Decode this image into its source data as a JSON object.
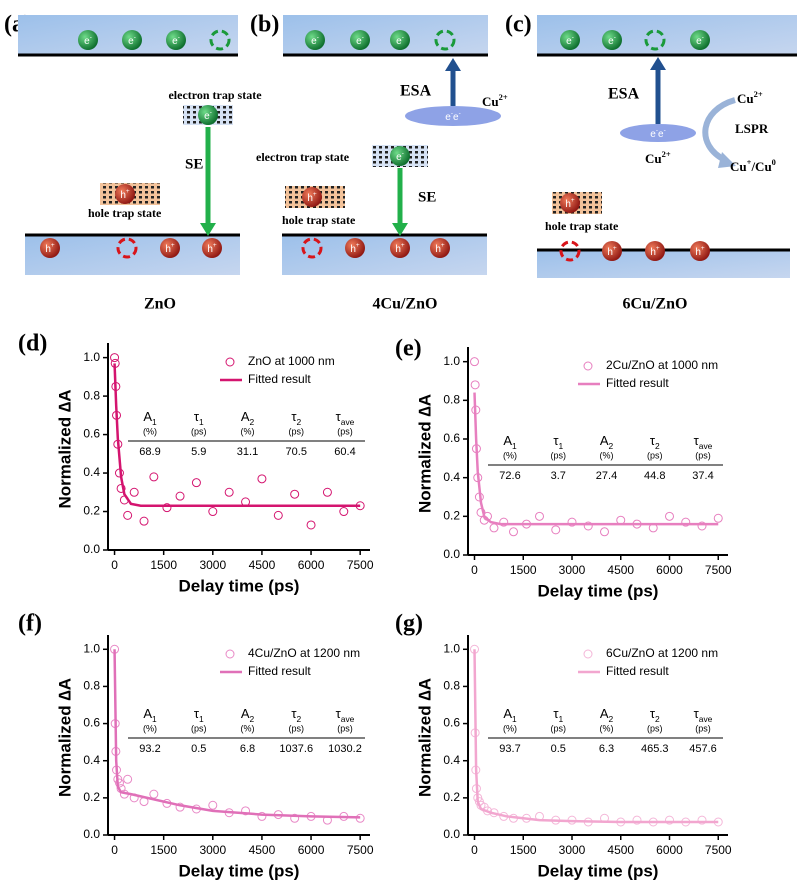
{
  "diagram": {
    "carriers": {
      "electron": "e",
      "electron_charge": "-",
      "hole": "h",
      "hole_charge": "+"
    },
    "panels": [
      {
        "label": "(a)",
        "caption": "ZnO",
        "electron_trap": "electron trap state",
        "hole_trap": "hole trap state",
        "transition": "SE"
      },
      {
        "label": "(b)",
        "caption": "4Cu/ZnO",
        "electron_trap": "electron trap state",
        "hole_trap": "hole trap state",
        "transition": "SE",
        "excitation": "ESA",
        "ion": "Cu",
        "ion_charge": "2+"
      },
      {
        "label": "(c)",
        "caption": "6Cu/ZnO",
        "hole_trap": "hole trap state",
        "excitation": "ESA",
        "ion": "Cu",
        "ion_charge": "2+",
        "process": "LSPR",
        "products": [
          "Cu",
          "+",
          "/Cu",
          "0"
        ]
      }
    ]
  },
  "chart_data": [
    {
      "type": "scatter",
      "label": "(d)",
      "x_label": "Delay time (ps)",
      "y_label": "Normalized ∆A",
      "xlim": [
        -200,
        7800
      ],
      "ylim": [
        0,
        1.05
      ],
      "xticks": [
        0,
        1500,
        3000,
        4500,
        6000,
        7500
      ],
      "yticks": [
        {
          "value": 0,
          "label": "0.0"
        },
        0.2,
        0.4,
        0.6,
        0.8,
        {
          "value": 1,
          "label": "1.0"
        }
      ],
      "series": [
        {
          "name": "ZnO at 1000 nm",
          "color": "#d4146f",
          "mode": "markers",
          "x": [
            0,
            20,
            40,
            60,
            100,
            150,
            200,
            300,
            400,
            600,
            900,
            1200,
            1600,
            2000,
            2500,
            3000,
            3500,
            4000,
            4500,
            5000,
            5500,
            6000,
            6500,
            7000,
            7500
          ],
          "values": [
            1.0,
            0.97,
            0.85,
            0.7,
            0.55,
            0.4,
            0.32,
            0.26,
            0.18,
            0.3,
            0.15,
            0.38,
            0.22,
            0.28,
            0.35,
            0.2,
            0.3,
            0.25,
            0.37,
            0.18,
            0.29,
            0.13,
            0.3,
            0.2,
            0.23
          ]
        },
        {
          "name": "Fitted result",
          "color": "#d4146f",
          "mode": "line",
          "x": [
            0,
            50,
            100,
            200,
            300,
            500,
            800,
            1500,
            3000,
            7500
          ],
          "values": [
            0.97,
            0.75,
            0.58,
            0.38,
            0.29,
            0.24,
            0.23,
            0.23,
            0.23,
            0.23
          ]
        }
      ],
      "table": {
        "columns": [
          {
            "symbol": "A",
            "sub": "1",
            "unit": "(%)"
          },
          {
            "symbol": "τ",
            "sub": "1",
            "unit": "(ps)"
          },
          {
            "symbol": "A",
            "sub": "2",
            "unit": "(%)"
          },
          {
            "symbol": "τ",
            "sub": "2",
            "unit": "(ps)"
          },
          {
            "symbol": "τ",
            "sub": "ave",
            "unit": "(ps)"
          }
        ],
        "row": [
          68.9,
          5.9,
          31.1,
          70.5,
          60.4
        ]
      }
    },
    {
      "type": "scatter",
      "label": "(e)",
      "x_label": "Delay time (ps)",
      "y_label": "Normalized ∆A",
      "xlim": [
        -200,
        7800
      ],
      "ylim": [
        0,
        1.05
      ],
      "xticks": [
        0,
        1500,
        3000,
        4500,
        6000,
        7500
      ],
      "yticks": [
        {
          "value": 0,
          "label": "0.0"
        },
        0.2,
        0.4,
        0.6,
        0.8,
        {
          "value": 1,
          "label": "1.0"
        }
      ],
      "series": [
        {
          "name": "2Cu/ZnO at 1000 nm",
          "color": "#e77fbf",
          "mode": "markers",
          "x": [
            0,
            20,
            40,
            60,
            100,
            150,
            200,
            300,
            400,
            600,
            900,
            1200,
            1600,
            2000,
            2500,
            3000,
            3500,
            4000,
            4500,
            5000,
            5500,
            6000,
            6500,
            7000,
            7500
          ],
          "values": [
            1.0,
            0.88,
            0.75,
            0.55,
            0.4,
            0.3,
            0.22,
            0.18,
            0.2,
            0.14,
            0.17,
            0.12,
            0.16,
            0.2,
            0.13,
            0.17,
            0.15,
            0.12,
            0.18,
            0.16,
            0.14,
            0.2,
            0.17,
            0.15,
            0.19
          ]
        },
        {
          "name": "Fitted result",
          "color": "#e77fbf",
          "mode": "line",
          "x": [
            0,
            50,
            100,
            200,
            300,
            500,
            800,
            1500,
            3000,
            7500
          ],
          "values": [
            0.84,
            0.6,
            0.43,
            0.27,
            0.2,
            0.17,
            0.16,
            0.16,
            0.16,
            0.16
          ]
        }
      ],
      "table": {
        "columns": [
          {
            "symbol": "A",
            "sub": "1",
            "unit": "(%)"
          },
          {
            "symbol": "τ",
            "sub": "1",
            "unit": "(ps)"
          },
          {
            "symbol": "A",
            "sub": "2",
            "unit": "(%)"
          },
          {
            "symbol": "τ",
            "sub": "2",
            "unit": "(ps)"
          },
          {
            "symbol": "τ",
            "sub": "ave",
            "unit": "(ps)"
          }
        ],
        "row": [
          72.6,
          3.7,
          27.4,
          44.8,
          37.4
        ]
      }
    },
    {
      "type": "scatter",
      "label": "(f)",
      "x_label": "Delay time (ps)",
      "y_label": "Normalized ∆A",
      "xlim": [
        -200,
        7800
      ],
      "ylim": [
        0,
        1.05
      ],
      "xticks": [
        0,
        1500,
        3000,
        4500,
        6000,
        7500
      ],
      "yticks": [
        {
          "value": 0,
          "label": "0.0"
        },
        0.2,
        0.4,
        0.6,
        0.8,
        {
          "value": 1,
          "label": "1.0"
        }
      ],
      "series": [
        {
          "name": "4Cu/ZnO at 1200 nm",
          "color": "#e888c6",
          "mode": "markers",
          "x": [
            0,
            20,
            40,
            60,
            100,
            150,
            200,
            300,
            400,
            600,
            900,
            1200,
            1600,
            2000,
            2500,
            3000,
            3500,
            4000,
            4500,
            5000,
            5500,
            6000,
            6500,
            7000,
            7500
          ],
          "values": [
            1.0,
            0.6,
            0.45,
            0.35,
            0.3,
            0.28,
            0.25,
            0.22,
            0.3,
            0.2,
            0.18,
            0.22,
            0.17,
            0.15,
            0.14,
            0.16,
            0.12,
            0.13,
            0.1,
            0.11,
            0.09,
            0.1,
            0.08,
            0.1,
            0.09
          ]
        },
        {
          "name": "Fitted result",
          "color": "#e070b8",
          "mode": "line",
          "x": [
            0,
            50,
            100,
            200,
            500,
            1000,
            2000,
            3000,
            4500,
            6000,
            7500
          ],
          "values": [
            1.0,
            0.4,
            0.26,
            0.23,
            0.22,
            0.2,
            0.16,
            0.13,
            0.11,
            0.1,
            0.095
          ]
        }
      ],
      "table": {
        "columns": [
          {
            "symbol": "A",
            "sub": "1",
            "unit": "(%)"
          },
          {
            "symbol": "τ",
            "sub": "1",
            "unit": "(ps)"
          },
          {
            "symbol": "A",
            "sub": "2",
            "unit": "(%)"
          },
          {
            "symbol": "τ",
            "sub": "2",
            "unit": "(ps)"
          },
          {
            "symbol": "τ",
            "sub": "ave",
            "unit": "(ps)"
          }
        ],
        "row": [
          93.2,
          0.5,
          6.8,
          1037.6,
          1030.2
        ]
      }
    },
    {
      "type": "scatter",
      "label": "(g)",
      "x_label": "Delay time (ps)",
      "y_label": "Normalized ∆A",
      "xlim": [
        -200,
        7800
      ],
      "ylim": [
        0,
        1.05
      ],
      "xticks": [
        0,
        1500,
        3000,
        4500,
        6000,
        7500
      ],
      "yticks": [
        {
          "value": 0,
          "label": "0.0"
        },
        0.2,
        0.4,
        0.6,
        0.8,
        {
          "value": 1,
          "label": "1.0"
        }
      ],
      "series": [
        {
          "name": "6Cu/ZnO at 1200 nm",
          "color": "#f4b6d8",
          "mode": "markers",
          "x": [
            0,
            20,
            40,
            60,
            100,
            150,
            200,
            300,
            400,
            600,
            900,
            1200,
            1600,
            2000,
            2500,
            3000,
            3500,
            4000,
            4500,
            5000,
            5500,
            6000,
            6500,
            7000,
            7500
          ],
          "values": [
            1.0,
            0.55,
            0.35,
            0.25,
            0.2,
            0.18,
            0.16,
            0.15,
            0.13,
            0.12,
            0.1,
            0.09,
            0.09,
            0.1,
            0.08,
            0.08,
            0.07,
            0.09,
            0.07,
            0.08,
            0.07,
            0.08,
            0.07,
            0.08,
            0.07
          ]
        },
        {
          "name": "Fitted result",
          "color": "#f2a6cf",
          "mode": "line",
          "x": [
            0,
            50,
            100,
            200,
            500,
            1000,
            2000,
            3000,
            4500,
            6000,
            7500
          ],
          "values": [
            1.0,
            0.35,
            0.18,
            0.14,
            0.12,
            0.1,
            0.08,
            0.075,
            0.07,
            0.07,
            0.07
          ]
        }
      ],
      "table": {
        "columns": [
          {
            "symbol": "A",
            "sub": "1",
            "unit": "(%)"
          },
          {
            "symbol": "τ",
            "sub": "1",
            "unit": "(ps)"
          },
          {
            "symbol": "A",
            "sub": "2",
            "unit": "(%)"
          },
          {
            "symbol": "τ",
            "sub": "2",
            "unit": "(ps)"
          },
          {
            "symbol": "τ",
            "sub": "ave",
            "unit": "(ps)"
          }
        ],
        "row": [
          93.7,
          0.5,
          6.3,
          465.3,
          457.6
        ]
      }
    }
  ]
}
